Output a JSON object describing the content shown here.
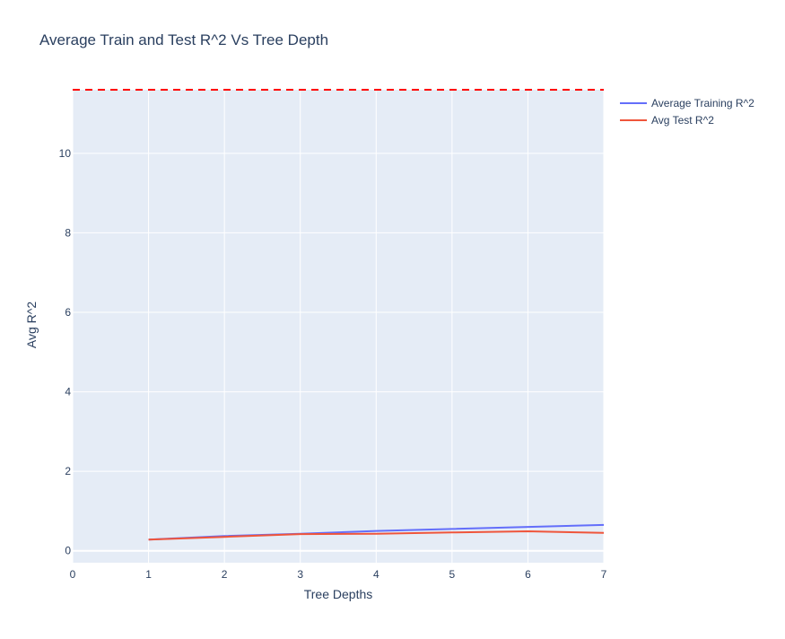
{
  "chart_data": {
    "type": "line",
    "title": "Average Train and Test R^2 Vs Tree Depth",
    "xlabel": "Tree Depths",
    "ylabel": "Avg R^2",
    "xlim": [
      0,
      7
    ],
    "ylim": [
      -0.3,
      11.6
    ],
    "x_ticks": [
      0,
      1,
      2,
      3,
      4,
      5,
      6,
      7
    ],
    "y_ticks": [
      0,
      2,
      4,
      6,
      8,
      10
    ],
    "grid": true,
    "legend_position": "top-right",
    "x": [
      1,
      2,
      3,
      4,
      5,
      6,
      7
    ],
    "series": [
      {
        "name": "Average Training R^2",
        "color": "#636efa",
        "values": [
          0.28,
          0.37,
          0.43,
          0.5,
          0.55,
          0.6,
          0.65
        ]
      },
      {
        "name": "Avg Test R^2",
        "color": "#ef553b",
        "values": [
          0.28,
          0.35,
          0.42,
          0.43,
          0.46,
          0.49,
          0.45
        ]
      }
    ],
    "reference_lines": [
      {
        "orientation": "horizontal",
        "y": 11.6,
        "color": "#ff0000",
        "style": "dashed"
      }
    ],
    "colors": {
      "plot_background": "#e5ecf6",
      "grid": "#ffffff",
      "text": "#2a3f5f"
    }
  }
}
